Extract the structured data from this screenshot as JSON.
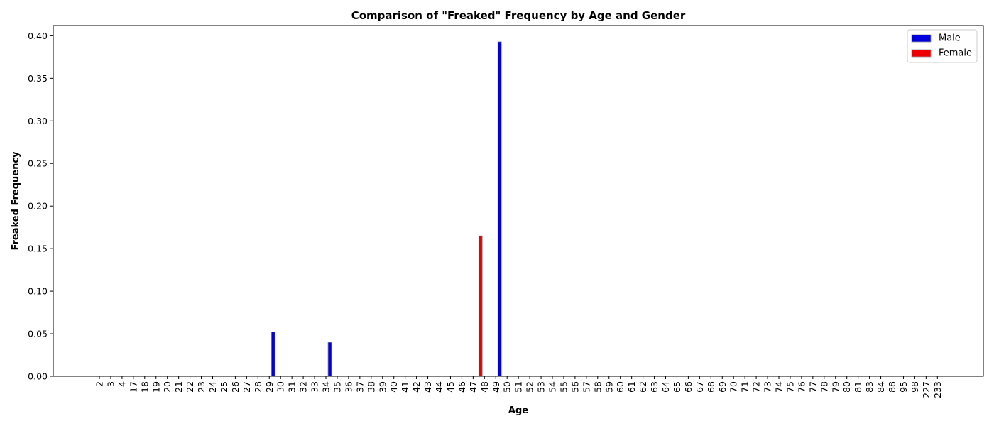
{
  "chart_data": {
    "type": "bar",
    "title": "Comparison of \"Freaked\" Frequency by Age and Gender",
    "xlabel": "Age",
    "ylabel": "Freaked Frequency",
    "ylim": [
      0,
      0.412
    ],
    "yticks": [
      "0.00",
      "0.05",
      "0.10",
      "0.15",
      "0.20",
      "0.25",
      "0.30",
      "0.35",
      "0.40"
    ],
    "ytick_values": [
      0,
      0.05,
      0.1,
      0.15,
      0.2,
      0.25,
      0.3,
      0.35,
      0.4
    ],
    "grid": false,
    "legend_position": "top-right",
    "categories": [
      "2",
      "3",
      "4",
      "17",
      "18",
      "19",
      "20",
      "21",
      "22",
      "23",
      "24",
      "25",
      "26",
      "27",
      "28",
      "29",
      "30",
      "31",
      "32",
      "33",
      "34",
      "35",
      "36",
      "37",
      "38",
      "39",
      "40",
      "41",
      "42",
      "43",
      "44",
      "45",
      "46",
      "47",
      "48",
      "49",
      "50",
      "51",
      "52",
      "53",
      "54",
      "55",
      "56",
      "57",
      "58",
      "59",
      "60",
      "61",
      "62",
      "63",
      "64",
      "65",
      "66",
      "67",
      "68",
      "69",
      "70",
      "71",
      "72",
      "73",
      "74",
      "75",
      "76",
      "77",
      "78",
      "79",
      "80",
      "81",
      "83",
      "84",
      "88",
      "95",
      "98",
      "227",
      "233"
    ],
    "series": [
      {
        "name": "Male",
        "color": "#0000dd",
        "values": [
          0,
          0,
          0,
          0,
          0,
          0,
          0,
          0,
          0,
          0,
          0,
          0,
          0,
          0,
          0,
          0.052,
          0,
          0,
          0,
          0,
          0.04,
          0,
          0,
          0,
          0,
          0,
          0,
          0,
          0,
          0,
          0,
          0,
          0,
          0,
          0,
          0.393,
          0,
          0,
          0,
          0,
          0,
          0,
          0,
          0,
          0,
          0,
          0,
          0,
          0,
          0,
          0,
          0,
          0,
          0,
          0,
          0,
          0,
          0,
          0,
          0,
          0,
          0,
          0,
          0,
          0,
          0,
          0,
          0,
          0,
          0,
          0,
          0,
          0,
          0,
          0
        ]
      },
      {
        "name": "Female",
        "color": "#ee0000",
        "values": [
          0,
          0,
          0,
          0,
          0,
          0,
          0,
          0,
          0,
          0,
          0,
          0,
          0,
          0,
          0,
          0,
          0,
          0,
          0,
          0,
          0,
          0,
          0,
          0,
          0,
          0,
          0,
          0,
          0,
          0,
          0,
          0,
          0,
          0,
          0.165,
          0,
          0,
          0,
          0,
          0,
          0,
          0,
          0,
          0,
          0,
          0,
          0,
          0,
          0,
          0,
          0,
          0,
          0,
          0,
          0,
          0,
          0,
          0,
          0,
          0,
          0,
          0,
          0,
          0,
          0,
          0,
          0,
          0,
          0,
          0,
          0,
          0,
          0,
          0,
          0
        ]
      }
    ]
  }
}
